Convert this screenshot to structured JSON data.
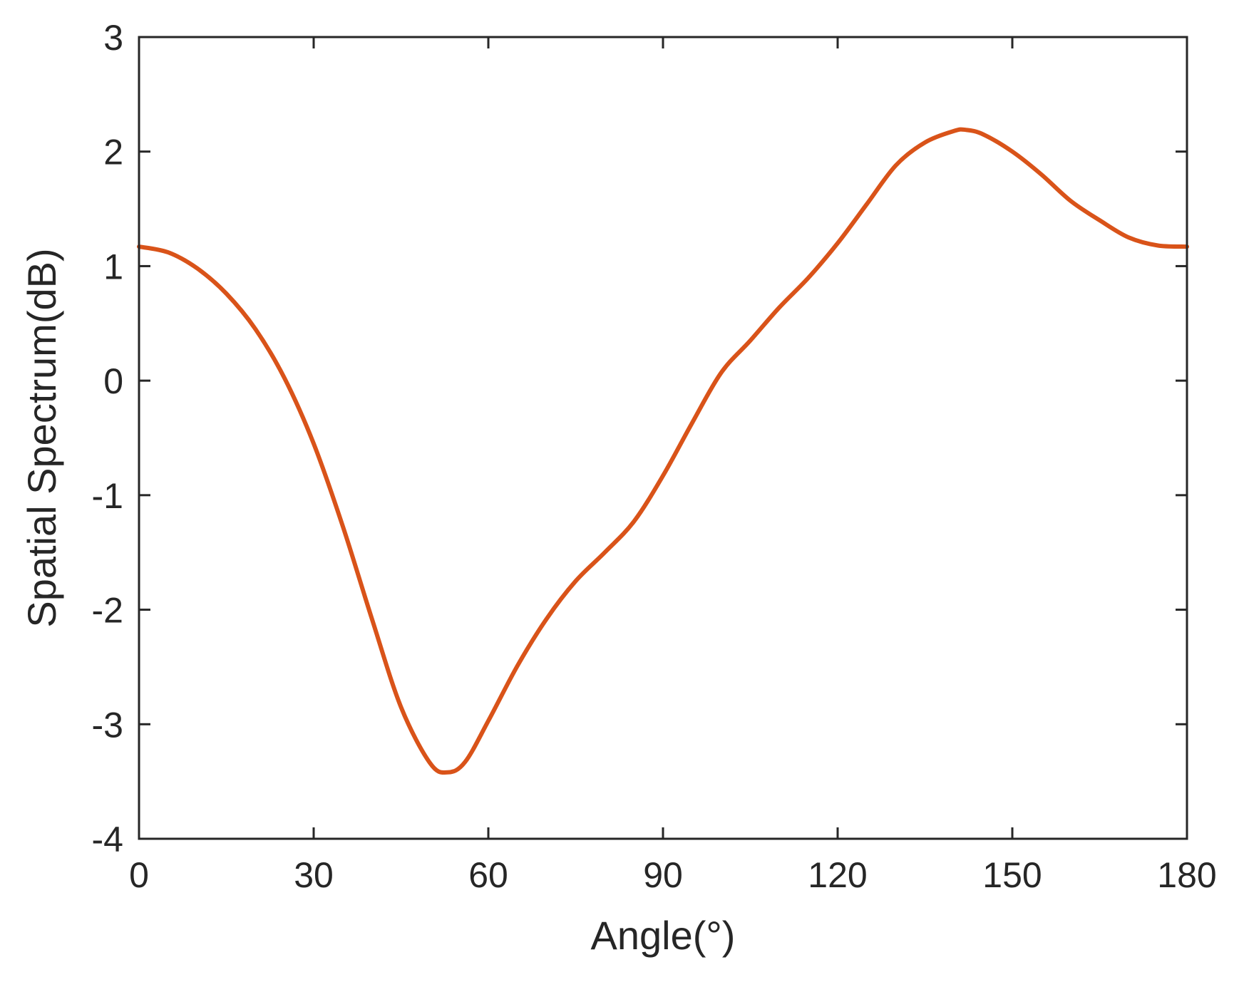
{
  "chart_data": {
    "type": "line",
    "xlabel": "Angle(°)",
    "ylabel": "Spatial Spectrum(dB)",
    "xlim": [
      0,
      180
    ],
    "ylim": [
      -4,
      3
    ],
    "xticks": [
      "0",
      "30",
      "60",
      "90",
      "120",
      "150",
      "180"
    ],
    "yticks": [
      "-4",
      "-3",
      "-2",
      "-1",
      "0",
      "1",
      "2",
      "3"
    ],
    "grid": false,
    "line_color": "#D95319",
    "series": [
      {
        "x": [
          0,
          5,
          10,
          15,
          20,
          25,
          30,
          35,
          40,
          45,
          50,
          53,
          56,
          60,
          65,
          70,
          75,
          80,
          85,
          90,
          95,
          100,
          105,
          110,
          115,
          120,
          125,
          130,
          135,
          140,
          142,
          145,
          150,
          155,
          160,
          165,
          170,
          175,
          180
        ],
        "y": [
          1.17,
          1.12,
          0.98,
          0.76,
          0.45,
          0.02,
          -0.55,
          -1.27,
          -2.08,
          -2.85,
          -3.34,
          -3.42,
          -3.33,
          -2.97,
          -2.49,
          -2.08,
          -1.75,
          -1.5,
          -1.23,
          -0.83,
          -0.37,
          0.07,
          0.35,
          0.64,
          0.9,
          1.2,
          1.54,
          1.88,
          2.08,
          2.18,
          2.19,
          2.15,
          2.0,
          1.8,
          1.57,
          1.4,
          1.25,
          1.18,
          1.17
        ]
      }
    ]
  }
}
